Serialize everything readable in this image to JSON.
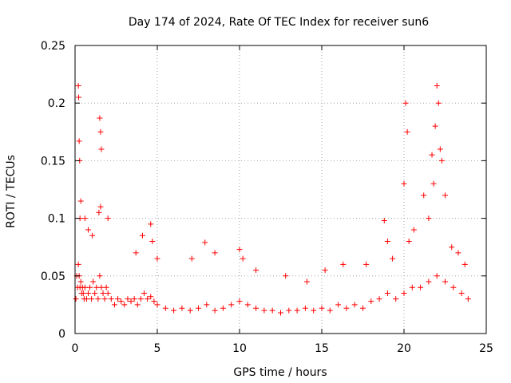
{
  "chart_data": {
    "type": "scatter",
    "title": "Day 174 of 2024, Rate Of TEC Index for receiver sun6",
    "xlabel": "GPS time / hours",
    "ylabel": "ROTI / TECUs",
    "xlim": [
      0,
      25
    ],
    "ylim": [
      0,
      0.25
    ],
    "x_ticks": [
      0,
      5,
      10,
      15,
      20,
      25
    ],
    "x_tick_labels": [
      "0",
      "5",
      "10",
      "15",
      "20",
      "25"
    ],
    "y_ticks": [
      0,
      0.05,
      0.1,
      0.15,
      0.2,
      0.25
    ],
    "y_tick_labels": [
      "0",
      "0.05",
      "0.1",
      "0.15",
      "0.2",
      "0.25"
    ],
    "grid": true,
    "marker": "plus",
    "color": "#ff0000",
    "series": [
      {
        "x": [
          0.05,
          0.1,
          0.15,
          0.2,
          0.25,
          0.3,
          0.35,
          0.4,
          0.45,
          0.5,
          0.55,
          0.6,
          0.7,
          0.8,
          0.9,
          1.0,
          1.1,
          1.2,
          1.3,
          1.4,
          1.5,
          1.6,
          1.7,
          1.8,
          1.9,
          2.0,
          2.2,
          2.4,
          2.6,
          2.8,
          3.0,
          3.2,
          3.4,
          3.6,
          3.8,
          4.0,
          4.2,
          4.4,
          4.6,
          4.8,
          5.0,
          5.5,
          6.0,
          6.5,
          7.0,
          7.5,
          8.0,
          8.5,
          9.0,
          9.5,
          10.0,
          10.5,
          11.0,
          11.5,
          12.0,
          12.5,
          13.0,
          13.5,
          14.0,
          14.5,
          15.0,
          15.5,
          16.0,
          16.5,
          17.0,
          17.5,
          18.0,
          18.5,
          19.0,
          19.5,
          20.0,
          20.5,
          21.0,
          21.5,
          22.0,
          22.5,
          23.0,
          23.5,
          23.9,
          0.2,
          0.22,
          0.25,
          0.28,
          1.5,
          1.55,
          1.6,
          20.1,
          20.2,
          20.0,
          22.0,
          22.1,
          21.9,
          0.3,
          0.35,
          0.6,
          0.8,
          1.05,
          1.45,
          1.55,
          2.0,
          3.7,
          4.1,
          4.6,
          4.7,
          5.0,
          7.1,
          7.9,
          8.5,
          10.0,
          10.2,
          11.0,
          12.8,
          14.1,
          15.2,
          16.3,
          17.7,
          18.8,
          19.0,
          19.3,
          20.3,
          20.6,
          21.2,
          21.5,
          21.7,
          21.8,
          22.2,
          22.3,
          22.5,
          22.9,
          23.3,
          23.7
        ],
        "y": [
          0.03,
          0.05,
          0.04,
          0.06,
          0.05,
          0.04,
          0.045,
          0.035,
          0.04,
          0.035,
          0.03,
          0.04,
          0.03,
          0.035,
          0.04,
          0.03,
          0.045,
          0.035,
          0.04,
          0.03,
          0.05,
          0.04,
          0.035,
          0.03,
          0.04,
          0.035,
          0.03,
          0.025,
          0.03,
          0.028,
          0.025,
          0.03,
          0.028,
          0.03,
          0.025,
          0.03,
          0.035,
          0.03,
          0.032,
          0.028,
          0.025,
          0.022,
          0.02,
          0.022,
          0.02,
          0.022,
          0.025,
          0.02,
          0.022,
          0.025,
          0.028,
          0.025,
          0.022,
          0.02,
          0.02,
          0.018,
          0.02,
          0.02,
          0.022,
          0.02,
          0.022,
          0.02,
          0.025,
          0.022,
          0.025,
          0.022,
          0.028,
          0.03,
          0.035,
          0.03,
          0.035,
          0.04,
          0.04,
          0.045,
          0.05,
          0.045,
          0.04,
          0.035,
          0.03,
          0.215,
          0.205,
          0.167,
          0.15,
          0.187,
          0.175,
          0.16,
          0.2,
          0.175,
          0.13,
          0.215,
          0.2,
          0.18,
          0.1,
          0.115,
          0.1,
          0.09,
          0.085,
          0.105,
          0.11,
          0.1,
          0.07,
          0.085,
          0.095,
          0.08,
          0.065,
          0.065,
          0.079,
          0.07,
          0.073,
          0.065,
          0.055,
          0.05,
          0.045,
          0.055,
          0.06,
          0.06,
          0.098,
          0.08,
          0.065,
          0.08,
          0.09,
          0.12,
          0.1,
          0.155,
          0.13,
          0.16,
          0.15,
          0.12,
          0.075,
          0.07,
          0.06
        ]
      }
    ]
  }
}
